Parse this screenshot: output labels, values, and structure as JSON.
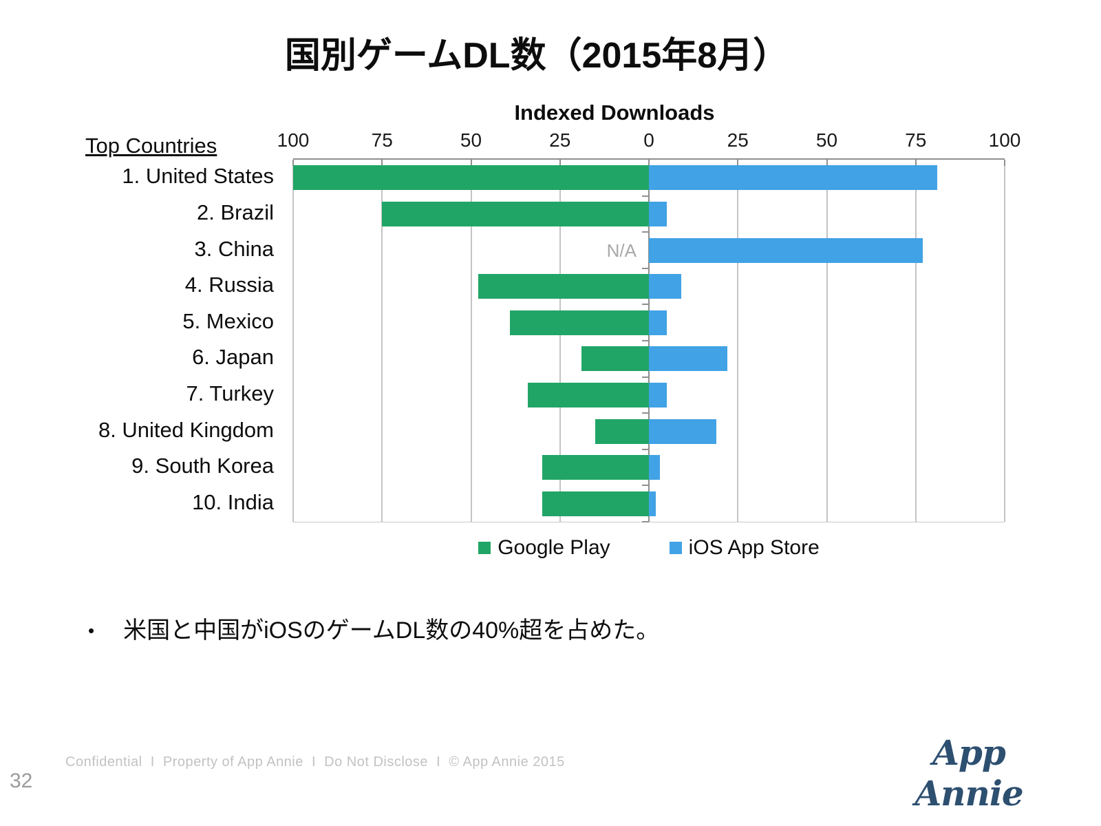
{
  "slide": {
    "title": "国別ゲームDL数（2015年8月）",
    "bullet_dot": "•",
    "bullet": "米国と中国がiOSのゲームDL数の40%超を占めた。",
    "footer": "Confidential  I  Property of App Annie  I  Do Not Disclose  I  © App Annie 2015",
    "page_number": "32",
    "logo_text": "App Annie"
  },
  "chart_data": {
    "type": "bar",
    "orientation": "horizontal-diverging",
    "title": "Indexed Downloads",
    "row_header": "Top Countries",
    "axis_tick_labels": [
      "100",
      "75",
      "50",
      "25",
      "0",
      "25",
      "50",
      "75",
      "100"
    ],
    "axis_range_each_side": [
      0,
      100
    ],
    "grid": true,
    "na_label": "N/A",
    "categories": [
      "1. United States",
      "2. Brazil",
      "3. China",
      "4. Russia",
      "5. Mexico",
      "6. Japan",
      "7. Turkey",
      "8. United Kingdom",
      "9. South Korea",
      "10. India"
    ],
    "series": [
      {
        "name": "Google Play",
        "side": "left",
        "color": "#20A566",
        "values": [
          100,
          75,
          null,
          48,
          39,
          19,
          34,
          15,
          30,
          30
        ]
      },
      {
        "name": "iOS App Store",
        "side": "right",
        "color": "#41A2E5",
        "values": [
          81,
          5,
          77,
          9,
          5,
          22,
          5,
          19,
          3,
          2
        ]
      }
    ],
    "legend_position": "bottom"
  }
}
